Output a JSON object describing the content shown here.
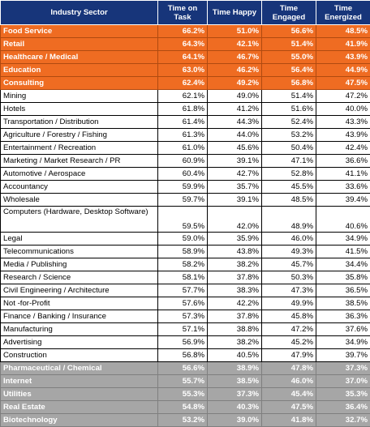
{
  "headers": [
    "Industry Sector",
    "Time on Task",
    "Time Happy",
    "Time Engaged",
    "Time Energized"
  ],
  "colors": {
    "header": "#17357a",
    "top_group": "#ef6c22",
    "bottom_group": "#a6a6a6"
  },
  "rows": [
    {
      "sector": "Food Service",
      "task": "66.2%",
      "happy": "51.0%",
      "engaged": "56.6%",
      "energized": "48.5%",
      "group": "orange"
    },
    {
      "sector": "Retail",
      "task": "64.3%",
      "happy": "42.1%",
      "engaged": "51.4%",
      "energized": "41.9%",
      "group": "orange"
    },
    {
      "sector": "Healthcare / Medical",
      "task": "64.1%",
      "happy": "46.7%",
      "engaged": "55.0%",
      "energized": "43.9%",
      "group": "orange"
    },
    {
      "sector": "Education",
      "task": "63.0%",
      "happy": "46.2%",
      "engaged": "56.4%",
      "energized": "44.9%",
      "group": "orange"
    },
    {
      "sector": "Consulting",
      "task": "62.4%",
      "happy": "49.2%",
      "engaged": "56.8%",
      "energized": "47.5%",
      "group": "orange"
    },
    {
      "sector": "Mining",
      "task": "62.1%",
      "happy": "49.0%",
      "engaged": "51.4%",
      "energized": "47.2%",
      "group": "plain"
    },
    {
      "sector": "Hotels",
      "task": "61.8%",
      "happy": "41.2%",
      "engaged": "51.6%",
      "energized": "40.0%",
      "group": "plain"
    },
    {
      "sector": "Transportation / Distribution",
      "task": "61.4%",
      "happy": "44.3%",
      "engaged": "52.4%",
      "energized": "43.3%",
      "group": "plain"
    },
    {
      "sector": "Agriculture / Forestry / Fishing",
      "task": "61.3%",
      "happy": "44.0%",
      "engaged": "53.2%",
      "energized": "43.9%",
      "group": "plain"
    },
    {
      "sector": "Entertainment / Recreation",
      "task": "61.0%",
      "happy": "45.6%",
      "engaged": "50.4%",
      "energized": "42.4%",
      "group": "plain"
    },
    {
      "sector": "Marketing / Market Research / PR",
      "task": "60.9%",
      "happy": "39.1%",
      "engaged": "47.1%",
      "energized": "36.6%",
      "group": "plain"
    },
    {
      "sector": "Automotive / Aerospace",
      "task": "60.4%",
      "happy": "42.7%",
      "engaged": "52.8%",
      "energized": "41.1%",
      "group": "plain"
    },
    {
      "sector": "Accountancy",
      "task": "59.9%",
      "happy": "35.7%",
      "engaged": "45.5%",
      "energized": "33.6%",
      "group": "plain"
    },
    {
      "sector": "Wholesale",
      "task": "59.7%",
      "happy": "39.1%",
      "engaged": "48.5%",
      "energized": "39.4%",
      "group": "plain"
    },
    {
      "sector": "Computers (Hardware, Desktop Software)",
      "task": "59.5%",
      "happy": "42.0%",
      "engaged": "48.9%",
      "energized": "40.6%",
      "group": "plain",
      "tall": true
    },
    {
      "sector": "Legal",
      "task": "59.0%",
      "happy": "35.9%",
      "engaged": "46.0%",
      "energized": "34.9%",
      "group": "plain"
    },
    {
      "sector": "Telecommunications",
      "task": "58.9%",
      "happy": "43.8%",
      "engaged": "49.3%",
      "energized": "41.5%",
      "group": "plain"
    },
    {
      "sector": "Media / Publishing",
      "task": "58.2%",
      "happy": "38.2%",
      "engaged": "45.7%",
      "energized": "34.4%",
      "group": "plain"
    },
    {
      "sector": "Research / Science",
      "task": "58.1%",
      "happy": "37.8%",
      "engaged": "50.3%",
      "energized": "35.8%",
      "group": "plain"
    },
    {
      "sector": "Civil Engineering / Architecture",
      "task": "57.7%",
      "happy": "38.3%",
      "engaged": "47.3%",
      "energized": "36.5%",
      "group": "plain"
    },
    {
      "sector": "Not -for-Profit",
      "task": "57.6%",
      "happy": "42.2%",
      "engaged": "49.9%",
      "energized": "38.5%",
      "group": "plain"
    },
    {
      "sector": "Finance / Banking / Insurance",
      "task": "57.3%",
      "happy": "37.8%",
      "engaged": "45.8%",
      "energized": "36.3%",
      "group": "plain"
    },
    {
      "sector": "Manufacturing",
      "task": "57.1%",
      "happy": "38.8%",
      "engaged": "47.2%",
      "energized": "37.6%",
      "group": "plain"
    },
    {
      "sector": "Advertising",
      "task": "56.9%",
      "happy": "38.2%",
      "engaged": "45.2%",
      "energized": "34.9%",
      "group": "plain"
    },
    {
      "sector": "Construction",
      "task": "56.8%",
      "happy": "40.5%",
      "engaged": "47.9%",
      "energized": "39.7%",
      "group": "plain"
    },
    {
      "sector": "Pharmaceutical / Chemical",
      "task": "56.6%",
      "happy": "38.9%",
      "engaged": "47.8%",
      "energized": "37.3%",
      "group": "gray"
    },
    {
      "sector": "Internet",
      "task": "55.7%",
      "happy": "38.5%",
      "engaged": "46.0%",
      "energized": "37.0%",
      "group": "gray"
    },
    {
      "sector": "Utilities",
      "task": "55.3%",
      "happy": "37.3%",
      "engaged": "45.4%",
      "energized": "35.3%",
      "group": "gray"
    },
    {
      "sector": "Real Estate",
      "task": "54.8%",
      "happy": "40.3%",
      "engaged": "47.5%",
      "energized": "36.4%",
      "group": "gray"
    },
    {
      "sector": "Biotechnology",
      "task": "53.2%",
      "happy": "39.0%",
      "engaged": "41.8%",
      "energized": "32.7%",
      "group": "gray"
    }
  ]
}
